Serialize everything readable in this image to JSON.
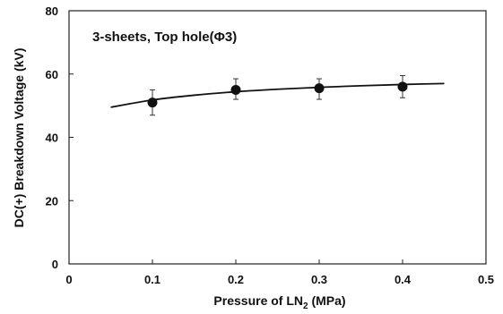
{
  "chart_data": {
    "type": "scatter",
    "annotation": "3-sheets,  Top hole(Φ3)",
    "xlabel_prefix": "Pressure of LN",
    "xlabel_sub": "2",
    "xlabel_suffix": " (MPa)",
    "ylabel": "DC(+) Breakdown Voltage (kV)",
    "xlim": [
      0,
      0.5
    ],
    "ylim": [
      0,
      80
    ],
    "x_ticks": [
      "0",
      "0.1",
      "0.2",
      "0.3",
      "0.4",
      "0.5"
    ],
    "y_ticks": [
      "0",
      "20",
      "40",
      "60",
      "80"
    ],
    "grid": false,
    "legend": "none",
    "series": [
      {
        "x": [
          0.1,
          0.2,
          0.3,
          0.4
        ],
        "y": [
          51,
          55,
          55.5,
          56
        ],
        "error_low": [
          47,
          52,
          52,
          52.5
        ],
        "error_high": [
          55,
          58.5,
          58.5,
          59.5
        ],
        "marker": "circle",
        "color": "#111111"
      }
    ],
    "trendline": {
      "x": [
        0.05,
        0.1,
        0.15,
        0.2,
        0.25,
        0.3,
        0.35,
        0.4,
        0.45
      ],
      "y": [
        49.5,
        51.8,
        53.3,
        54.4,
        55.2,
        55.8,
        56.3,
        56.7,
        57.0
      ],
      "color": "#111111"
    }
  }
}
